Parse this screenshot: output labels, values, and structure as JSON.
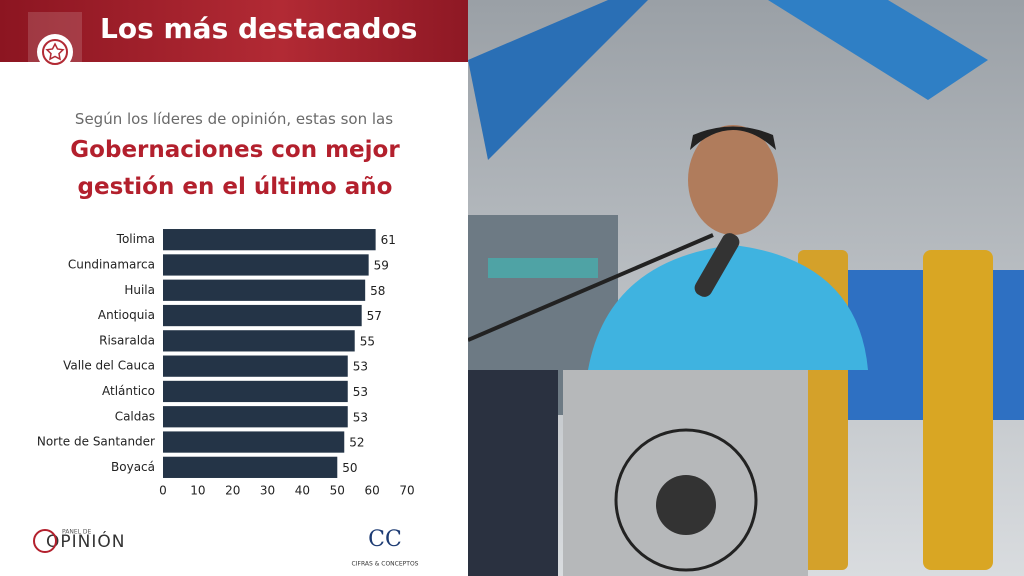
{
  "header": {
    "title": "Los más destacados"
  },
  "chart_data": {
    "type": "hbar",
    "subtitle": "Según los líderes de opinión, estas son las",
    "title": "Gobernaciones con mejor gestión en el último año",
    "categories": [
      "Tolima",
      "Cundinamarca",
      "Huila",
      "Antioquia",
      "Risaralda",
      "Valle del Cauca",
      "Atlántico",
      "Caldas",
      "Norte de Santander",
      "Boyacá"
    ],
    "values": [
      61,
      59,
      58,
      57,
      55,
      53,
      53,
      53,
      52,
      50
    ],
    "color": "#243447",
    "xlim": [
      0,
      70
    ],
    "xticks": [
      0,
      10,
      20,
      30,
      40,
      50,
      60,
      70
    ],
    "grid": false
  },
  "logos": {
    "left_small": "PANEL DE",
    "left": "OPINIÓN",
    "right": "CIFRAS & CONCEPTOS"
  }
}
